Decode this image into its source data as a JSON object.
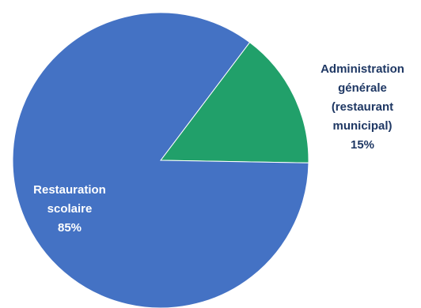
{
  "chart_data": {
    "type": "pie",
    "slices": [
      {
        "name_lines": [
          "Restauration",
          "scolaire"
        ],
        "value": 85,
        "percent_label": "85%",
        "color": "#4472C4",
        "label_color": "#ffffff"
      },
      {
        "name_lines": [
          "Administration",
          "générale",
          "(restaurant",
          "municipal)"
        ],
        "value": 15,
        "percent_label": "15%",
        "color": "#21A06A",
        "label_color": "#1F3864"
      }
    ],
    "title": "",
    "legend": "none"
  }
}
